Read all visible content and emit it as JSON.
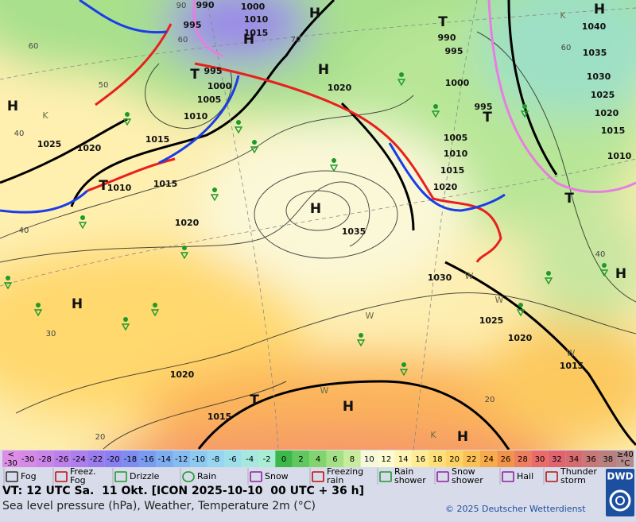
{
  "map": {
    "isobar_labels": [
      "990",
      "1000",
      "1010",
      "1015",
      "995",
      "995",
      "1000",
      "1005",
      "1010",
      "1015",
      "1020",
      "1025",
      "1015",
      "1010",
      "1020",
      "990",
      "995",
      "1000",
      "995",
      "1005",
      "1010",
      "1015",
      "1020",
      "1020",
      "1035",
      "1030",
      "1025",
      "1020",
      "1015",
      "1020",
      "1015",
      "1040",
      "1035",
      "1030",
      "1025",
      "1020",
      "1015",
      "1010"
    ],
    "pressure_centers": [
      "H",
      "H",
      "H",
      "T",
      "H",
      "T",
      "H",
      "T",
      "T",
      "H",
      "T",
      "H",
      "H",
      "T",
      "H",
      "H"
    ],
    "temperature_labels": [
      "60",
      "50",
      "40",
      "40",
      "30",
      "20",
      "60",
      "40",
      "20",
      "70",
      "60",
      "90"
    ],
    "minor_labels": [
      "K",
      "K",
      "K",
      "W",
      "W",
      "W",
      "W",
      "W"
    ]
  },
  "legend": {
    "temperature_scale": [
      {
        "label": "<\n-30",
        "color": "#dc8ee6"
      },
      {
        "label": "-30",
        "color": "#d58ae6"
      },
      {
        "label": "-28",
        "color": "#c985e8"
      },
      {
        "label": "-26",
        "color": "#bd80ea"
      },
      {
        "label": "-24",
        "color": "#ad7eec"
      },
      {
        "label": "-22",
        "color": "#9a7cee"
      },
      {
        "label": "-20",
        "color": "#8a7ef0"
      },
      {
        "label": "-18",
        "color": "#7c8cf0"
      },
      {
        "label": "-16",
        "color": "#7a9cf0"
      },
      {
        "label": "-14",
        "color": "#7eacf0"
      },
      {
        "label": "-12",
        "color": "#86bcf0"
      },
      {
        "label": "-10",
        "color": "#8ecaf0"
      },
      {
        "label": "-8",
        "color": "#96d6f0"
      },
      {
        "label": "-6",
        "color": "#9ee0ea"
      },
      {
        "label": "-4",
        "color": "#a4e8e0"
      },
      {
        "label": "-2",
        "color": "#a8eed4"
      },
      {
        "label": "0",
        "color": "#3cb84a"
      },
      {
        "label": "2",
        "color": "#60c85c"
      },
      {
        "label": "4",
        "color": "#82d46e"
      },
      {
        "label": "6",
        "color": "#a4e084"
      },
      {
        "label": "8",
        "color": "#c8ec9e"
      },
      {
        "label": "10",
        "color": "#f6f8dc"
      },
      {
        "label": "12",
        "color": "#fdfbd2"
      },
      {
        "label": "14",
        "color": "#fff4b2"
      },
      {
        "label": "16",
        "color": "#ffec94"
      },
      {
        "label": "18",
        "color": "#ffe076"
      },
      {
        "label": "20",
        "color": "#ffd264"
      },
      {
        "label": "22",
        "color": "#fcc154"
      },
      {
        "label": "24",
        "color": "#f8ab4a"
      },
      {
        "label": "26",
        "color": "#f29448"
      },
      {
        "label": "28",
        "color": "#ee7e5c"
      },
      {
        "label": "30",
        "color": "#ea6c68"
      },
      {
        "label": "32",
        "color": "#e0646e"
      },
      {
        "label": "34",
        "color": "#d66c70"
      },
      {
        "label": "36",
        "color": "#c87878"
      },
      {
        "label": "38",
        "color": "#b98080"
      },
      {
        "label": "≥40\n°C",
        "color": "#b48a8a"
      }
    ],
    "weather_symbols": [
      "Fog",
      "Freez.\nFog",
      "Drizzle",
      "Rain",
      "Snow",
      "Freezing\nrain",
      "Rain\nshower",
      "Snow\nshower",
      "Hail",
      "Thunder\nstorm"
    ]
  },
  "footer": {
    "valid_time": "VT: 12 UTC Sa.  11 Okt. [ICON 2025-10-10  00 UTC + 36 h]",
    "description": "Sea level pressure (hPa), Weather, Temperature 2m (°C)",
    "copyright": "© 2025 Deutscher Wetterdienst",
    "logo": "DWD"
  }
}
